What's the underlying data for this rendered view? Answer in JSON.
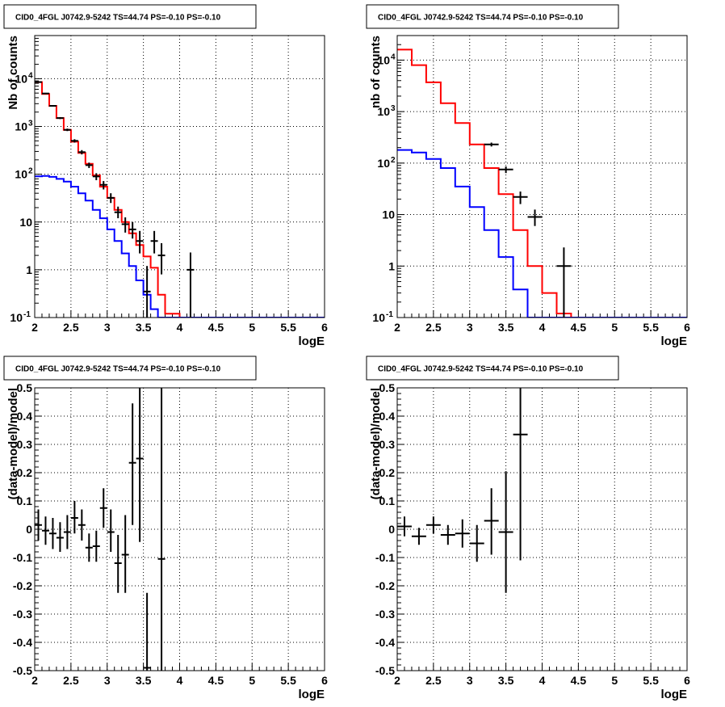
{
  "colors": {
    "data": "#000000",
    "total_model": "#ff0000",
    "source_model": "#0000ff",
    "grid": "#000000"
  },
  "chart_data": [
    {
      "type": "line",
      "title": "CID0_4FGL J0742.9-5242 TS=44.74 PS=-0.10 PS=-0.10",
      "xlabel": "logE",
      "ylabel": "Nb of counts",
      "xlim": [
        2,
        6
      ],
      "ylim": [
        0.1,
        80000
      ],
      "yscale": "log",
      "grid": true,
      "xticks": [
        "2",
        "2.5",
        "3",
        "3.5",
        "4",
        "4.5",
        "5",
        "5.5",
        "6"
      ],
      "yticks": [
        {
          "v": 0.1,
          "t": "10"
        },
        {
          "v": 1,
          "t": "1"
        },
        {
          "v": 10,
          "t": "10"
        },
        {
          "v": 100,
          "t": "10"
        },
        {
          "v": 1000,
          "t": "10"
        },
        {
          "v": 10000,
          "t": "10"
        }
      ],
      "yticks_sup": [
        "-1",
        "",
        "",
        "2",
        "3",
        "4"
      ],
      "bin_edges": [
        2.0,
        2.1,
        2.2,
        2.3,
        2.4,
        2.5,
        2.6,
        2.7,
        2.8,
        2.9,
        3.0,
        3.1,
        3.2,
        3.3,
        3.4,
        3.5,
        3.6,
        3.7,
        3.8,
        3.9,
        4.0,
        4.1,
        4.2,
        4.3,
        4.4,
        4.5,
        4.6,
        4.7,
        4.8,
        4.9,
        5.0,
        5.1,
        5.2,
        5.3,
        5.4,
        5.5,
        5.6,
        5.7,
        5.8,
        5.9,
        6.0
      ],
      "series": [
        {
          "kind": "step",
          "color": "#ff0000",
          "values": [
            8500,
            4800,
            2700,
            1500,
            850,
            480,
            280,
            165,
            95,
            55,
            32,
            18,
            10,
            5.8,
            3.3,
            1.9,
            1.1,
            0.3,
            0.12,
            0.12,
            0.1,
            0.1,
            0.1,
            0.1,
            0.1,
            0.1,
            0.1,
            0.1,
            0.1,
            0.1,
            0.1,
            0.1,
            0.1,
            0.1,
            0.1,
            0.1,
            0.1,
            0.1,
            0.1,
            0.1
          ]
        },
        {
          "kind": "step",
          "color": "#0000ff",
          "values": [
            90,
            92,
            88,
            80,
            70,
            55,
            40,
            28,
            18,
            12,
            7,
            4,
            2.2,
            1.2,
            0.6,
            0.3,
            0.15,
            0.1,
            0.1,
            0.1,
            0.1,
            0.1,
            0.1,
            0.1,
            0.1,
            0.1,
            0.1,
            0.1,
            0.1,
            0.1,
            0.1,
            0.1,
            0.1,
            0.1,
            0.1,
            0.1,
            0.1,
            0.1,
            0.1,
            0.1
          ]
        },
        {
          "kind": "errorbar",
          "color": "#000000",
          "xerr": 0.05,
          "points": [
            {
              "x": 2.05,
              "y": 8500,
              "lo": 8300,
              "hi": 8700
            },
            {
              "x": 2.15,
              "y": 4900,
              "lo": 4750,
              "hi": 5050
            },
            {
              "x": 2.25,
              "y": 2700,
              "lo": 2600,
              "hi": 2800
            },
            {
              "x": 2.35,
              "y": 1500,
              "lo": 1430,
              "hi": 1570
            },
            {
              "x": 2.45,
              "y": 850,
              "lo": 800,
              "hi": 900
            },
            {
              "x": 2.55,
              "y": 500,
              "lo": 460,
              "hi": 540
            },
            {
              "x": 2.65,
              "y": 290,
              "lo": 260,
              "hi": 320
            },
            {
              "x": 2.75,
              "y": 155,
              "lo": 135,
              "hi": 175
            },
            {
              "x": 2.85,
              "y": 90,
              "lo": 75,
              "hi": 105
            },
            {
              "x": 2.95,
              "y": 60,
              "lo": 48,
              "hi": 72
            },
            {
              "x": 3.05,
              "y": 32,
              "lo": 25,
              "hi": 40
            },
            {
              "x": 3.15,
              "y": 16,
              "lo": 12,
              "hi": 21
            },
            {
              "x": 3.25,
              "y": 9,
              "lo": 6,
              "hi": 12.5
            },
            {
              "x": 3.35,
              "y": 7,
              "lo": 4.5,
              "hi": 10
            },
            {
              "x": 3.45,
              "y": 4,
              "lo": 2.2,
              "hi": 6.5
            },
            {
              "x": 3.55,
              "y": 0.35,
              "lo": 0.1,
              "hi": 1.2
            },
            {
              "x": 3.65,
              "y": 4,
              "lo": 2.2,
              "hi": 6.5
            },
            {
              "x": 3.75,
              "y": 2,
              "lo": 0.8,
              "hi": 3.6
            },
            {
              "x": 4.15,
              "y": 1,
              "lo": 0.1,
              "hi": 2.3
            }
          ]
        }
      ]
    },
    {
      "type": "line",
      "title": "CID0_4FGL J0742.9-5242 TS=44.74 PS=-0.10 PS=-0.10",
      "xlabel": "logE",
      "ylabel": "nb of counts",
      "xlim": [
        2,
        6
      ],
      "ylim": [
        0.1,
        30000
      ],
      "yscale": "log",
      "grid": true,
      "xticks": [
        "2",
        "2.5",
        "3",
        "3.5",
        "4",
        "4.5",
        "5",
        "5.5",
        "6"
      ],
      "yticks": [
        {
          "v": 0.1,
          "t": "10"
        },
        {
          "v": 1,
          "t": "1"
        },
        {
          "v": 10,
          "t": "10"
        },
        {
          "v": 100,
          "t": "10"
        },
        {
          "v": 1000,
          "t": "10"
        },
        {
          "v": 10000,
          "t": "10"
        }
      ],
      "yticks_sup": [
        "-1",
        "",
        "",
        "2",
        "3",
        "4"
      ],
      "bin_edges": [
        2.0,
        2.2,
        2.4,
        2.6,
        2.8,
        3.0,
        3.2,
        3.4,
        3.6,
        3.8,
        4.0,
        4.2,
        4.4,
        4.6,
        4.8,
        5.0,
        5.2,
        5.4,
        5.6,
        5.8,
        6.0
      ],
      "series": [
        {
          "kind": "step",
          "color": "#ff0000",
          "values": [
            16000,
            8000,
            3700,
            1450,
            600,
            230,
            80,
            25,
            5,
            1,
            0.3,
            0.12,
            0.1,
            0.1,
            0.1,
            0.1,
            0.1,
            0.1,
            0.1,
            0.1
          ]
        },
        {
          "kind": "step",
          "color": "#0000ff",
          "values": [
            180,
            160,
            120,
            80,
            35,
            14,
            5,
            1.5,
            0.35,
            0.1,
            0.1,
            0.1,
            0.1,
            0.1,
            0.1,
            0.1,
            0.1,
            0.1,
            0.1,
            0.1
          ]
        },
        {
          "kind": "errorbar",
          "color": "#000000",
          "xerr": 0.1,
          "points": [
            {
              "x": 3.3,
              "y": 230,
              "lo": 210,
              "hi": 250
            },
            {
              "x": 3.5,
              "y": 75,
              "lo": 64,
              "hi": 86
            },
            {
              "x": 3.7,
              "y": 22,
              "lo": 16,
              "hi": 28
            },
            {
              "x": 3.9,
              "y": 9,
              "lo": 6,
              "hi": 12.5
            },
            {
              "x": 4.3,
              "y": 1,
              "lo": 0.1,
              "hi": 2.3
            }
          ]
        }
      ]
    },
    {
      "type": "scatter",
      "title": "CID0_4FGL J0742.9-5242 TS=44.74 PS=-0.10 PS=-0.10",
      "xlabel": "logE",
      "ylabel": "(data-model)/model",
      "xlim": [
        2,
        6
      ],
      "ylim": [
        -0.5,
        0.5
      ],
      "grid": true,
      "xticks": [
        "2",
        "2.5",
        "3",
        "3.5",
        "4",
        "4.5",
        "5",
        "5.5",
        "6"
      ],
      "yticks": [
        "-0.5",
        "-0.4",
        "-0.3",
        "-0.2",
        "-0.1",
        "0",
        "0.1",
        "0.2",
        "0.3",
        "0.4",
        "0.5"
      ],
      "series": [
        {
          "kind": "errorbar",
          "color": "#000000",
          "xerr": 0.05,
          "points": [
            {
              "x": 2.05,
              "y": 0.015,
              "lo": -0.04,
              "hi": 0.07
            },
            {
              "x": 2.15,
              "y": -0.005,
              "lo": -0.055,
              "hi": 0.045
            },
            {
              "x": 2.25,
              "y": -0.015,
              "lo": -0.07,
              "hi": 0.04
            },
            {
              "x": 2.35,
              "y": -0.03,
              "lo": -0.08,
              "hi": 0.025
            },
            {
              "x": 2.45,
              "y": -0.01,
              "lo": -0.07,
              "hi": 0.05
            },
            {
              "x": 2.55,
              "y": 0.04,
              "lo": -0.015,
              "hi": 0.1
            },
            {
              "x": 2.65,
              "y": 0.015,
              "lo": -0.04,
              "hi": 0.07
            },
            {
              "x": 2.75,
              "y": -0.065,
              "lo": -0.115,
              "hi": -0.015
            },
            {
              "x": 2.85,
              "y": -0.06,
              "lo": -0.115,
              "hi": -0.005
            },
            {
              "x": 2.95,
              "y": 0.075,
              "lo": 0.005,
              "hi": 0.145
            },
            {
              "x": 3.05,
              "y": -0.01,
              "lo": -0.08,
              "hi": 0.07
            },
            {
              "x": 3.15,
              "y": -0.12,
              "lo": -0.225,
              "hi": -0.02
            },
            {
              "x": 3.25,
              "y": -0.09,
              "lo": -0.225,
              "hi": 0.05
            },
            {
              "x": 3.35,
              "y": 0.235,
              "lo": 0.015,
              "hi": 0.445
            },
            {
              "x": 3.45,
              "y": 0.25,
              "lo": -0.045,
              "hi": 0.5
            },
            {
              "x": 3.55,
              "y": -0.49,
              "lo": -0.5,
              "hi": -0.225
            },
            {
              "x": 3.75,
              "y": -0.105,
              "lo": -0.5,
              "hi": 0.5
            }
          ]
        }
      ]
    },
    {
      "type": "scatter",
      "title": "CID0_4FGL J0742.9-5242 TS=44.74 PS=-0.10 PS=-0.10",
      "xlabel": "logE",
      "ylabel": "(data-model)/model",
      "xlim": [
        2,
        6
      ],
      "ylim": [
        -0.5,
        0.5
      ],
      "grid": true,
      "xticks": [
        "2",
        "2.5",
        "3",
        "3.5",
        "4",
        "4.5",
        "5",
        "5.5",
        "6"
      ],
      "yticks": [
        "-0.5",
        "-0.4",
        "-0.3",
        "-0.2",
        "-0.1",
        "0",
        "0.1",
        "0.2",
        "0.3",
        "0.4",
        "0.5"
      ],
      "series": [
        {
          "kind": "errorbar",
          "color": "#000000",
          "xerr": 0.1,
          "points": [
            {
              "x": 2.1,
              "y": 0.01,
              "lo": -0.025,
              "hi": 0.045
            },
            {
              "x": 2.3,
              "y": -0.025,
              "lo": -0.055,
              "hi": 0.005
            },
            {
              "x": 2.5,
              "y": 0.015,
              "lo": -0.015,
              "hi": 0.045
            },
            {
              "x": 2.7,
              "y": -0.02,
              "lo": -0.055,
              "hi": 0.015
            },
            {
              "x": 2.9,
              "y": -0.015,
              "lo": -0.065,
              "hi": 0.035
            },
            {
              "x": 3.1,
              "y": -0.05,
              "lo": -0.115,
              "hi": 0.015
            },
            {
              "x": 3.3,
              "y": 0.03,
              "lo": -0.09,
              "hi": 0.145
            },
            {
              "x": 3.5,
              "y": -0.01,
              "lo": -0.225,
              "hi": 0.205
            },
            {
              "x": 3.7,
              "y": 0.335,
              "lo": -0.11,
              "hi": 0.5
            }
          ]
        }
      ]
    }
  ]
}
